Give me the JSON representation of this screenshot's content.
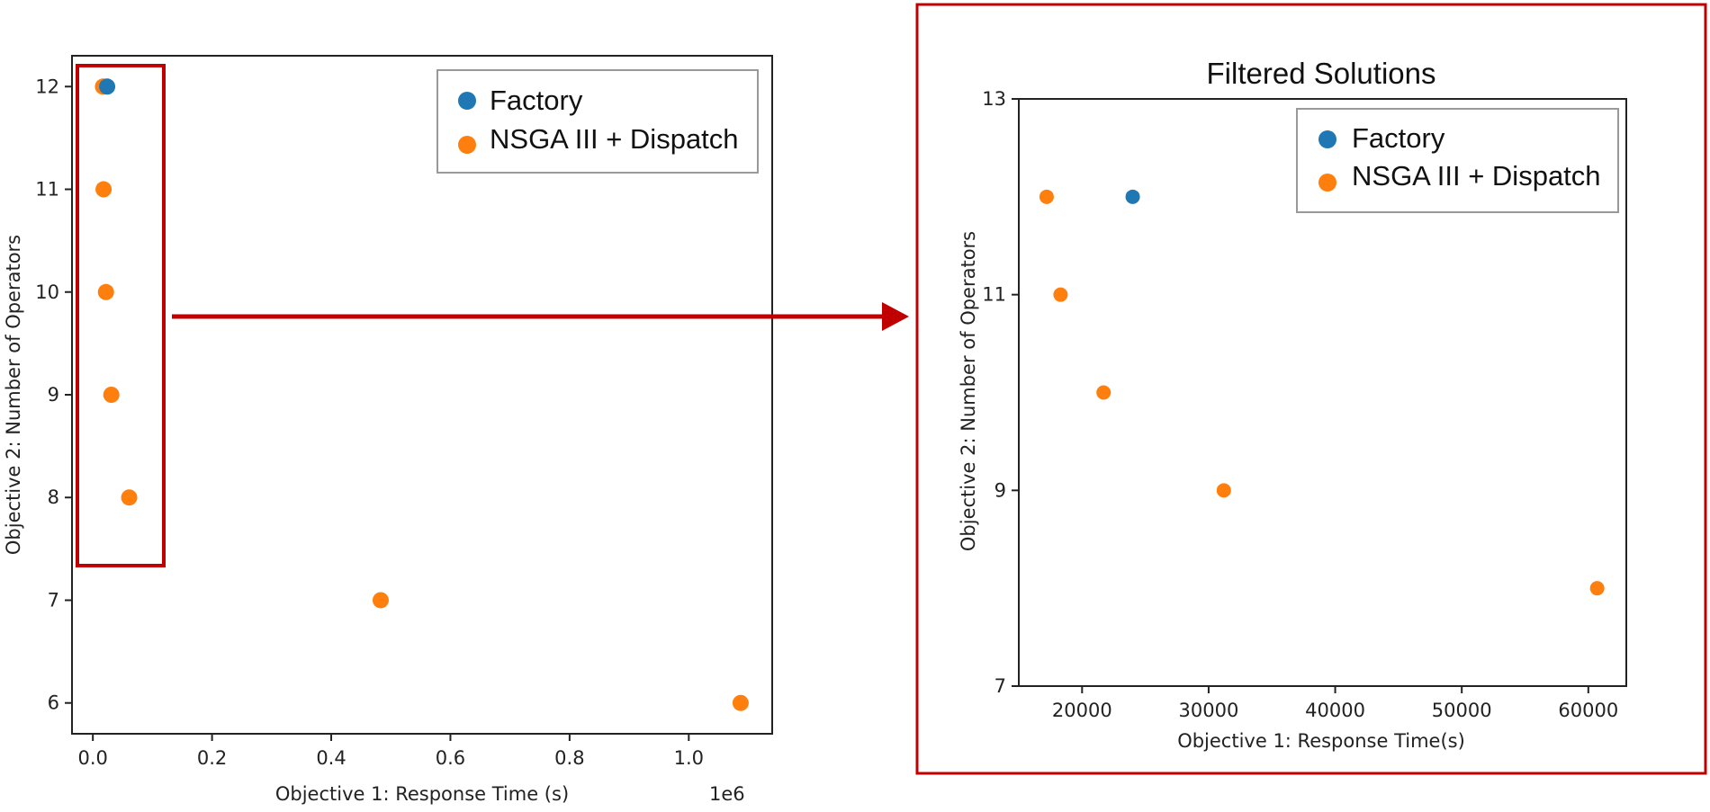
{
  "colors": {
    "factory": "#1f77b4",
    "nsga": "#ff7f0e",
    "highlight": "#c00000",
    "axis": "#222222"
  },
  "chart_data": [
    {
      "type": "scatter",
      "title": "",
      "xlabel": "Objective 1: Response Time (s)",
      "ylabel": "Objective 2: Number of Operators",
      "x_offset_text": "1e6",
      "xlim": [
        -0.035,
        1.14
      ],
      "ylim": [
        5.7,
        12.3
      ],
      "xticks": [
        0.0,
        0.2,
        0.4,
        0.6,
        0.8,
        1.0
      ],
      "xtick_labels": [
        "0.0",
        "0.2",
        "0.4",
        "0.6",
        "0.8",
        "1.0"
      ],
      "yticks": [
        6,
        7,
        8,
        9,
        10,
        11,
        12
      ],
      "ytick_labels": [
        "6",
        "7",
        "8",
        "9",
        "10",
        "11",
        "12"
      ],
      "legend_position": "top-right",
      "series": [
        {
          "name": "Factory",
          "color_key": "factory",
          "points": [
            [
              0.024,
              12
            ]
          ]
        },
        {
          "name": "NSGA III + Dispatch",
          "color_key": "nsga",
          "points": [
            [
              0.017,
              12
            ],
            [
              0.018,
              11
            ],
            [
              0.022,
              10
            ],
            [
              0.031,
              9
            ],
            [
              0.061,
              8
            ],
            [
              0.483,
              7
            ],
            [
              1.087,
              6
            ]
          ]
        }
      ]
    },
    {
      "type": "scatter",
      "title": "Filtered Solutions",
      "xlabel": "Objective 1: Response Time(s)",
      "ylabel": "Objective 2: Number of Operators",
      "x_offset_text": "",
      "xlim": [
        15000,
        63000
      ],
      "ylim": [
        7,
        13
      ],
      "xticks": [
        20000,
        30000,
        40000,
        50000,
        60000
      ],
      "xtick_labels": [
        "20000",
        "30000",
        "40000",
        "50000",
        "60000"
      ],
      "yticks": [
        7,
        9,
        11,
        13
      ],
      "ytick_labels": [
        "7",
        "9",
        "11",
        "13"
      ],
      "legend_position": "top-right",
      "series": [
        {
          "name": "Factory",
          "color_key": "factory",
          "points": [
            [
              24000,
              12
            ]
          ]
        },
        {
          "name": "NSGA III + Dispatch",
          "color_key": "nsga",
          "points": [
            [
              17200,
              12
            ],
            [
              18300,
              11
            ],
            [
              21700,
              10
            ],
            [
              31200,
              9
            ],
            [
              60700,
              8
            ]
          ]
        }
      ]
    }
  ]
}
